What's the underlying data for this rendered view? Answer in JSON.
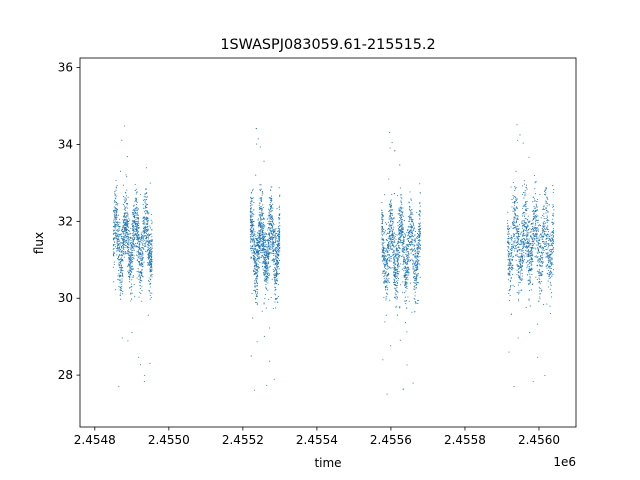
{
  "chart_data": {
    "type": "scatter",
    "title": "1SWASPJ083059.61-215515.2",
    "xlabel": "time",
    "ylabel": "flux",
    "x_offset_label": "1e6",
    "xlim": [
      2454760,
      2456100
    ],
    "ylim": [
      26.65,
      36.25
    ],
    "xticks": [
      2454800,
      2455000,
      2455200,
      2455400,
      2455600,
      2455800,
      2456000
    ],
    "xtick_labels": [
      "2.4548",
      "2.4550",
      "2.4552",
      "2.4554",
      "2.4556",
      "2.4558",
      "2.4560"
    ],
    "yticks": [
      28,
      30,
      32,
      34,
      36
    ],
    "ytick_labels": [
      "28",
      "30",
      "32",
      "34",
      "36"
    ],
    "grid": false,
    "marker_color": "#1f77b4",
    "seasons": [
      {
        "x_start": 2454850,
        "x_end": 2454955,
        "center": 31.5,
        "spread": 1.0
      },
      {
        "x_start": 2455220,
        "x_end": 2455300,
        "center": 31.4,
        "spread": 1.0
      },
      {
        "x_start": 2455575,
        "x_end": 2455680,
        "center": 31.3,
        "spread": 1.0
      },
      {
        "x_start": 2455915,
        "x_end": 2456040,
        "center": 31.5,
        "spread": 1.1
      }
    ]
  }
}
